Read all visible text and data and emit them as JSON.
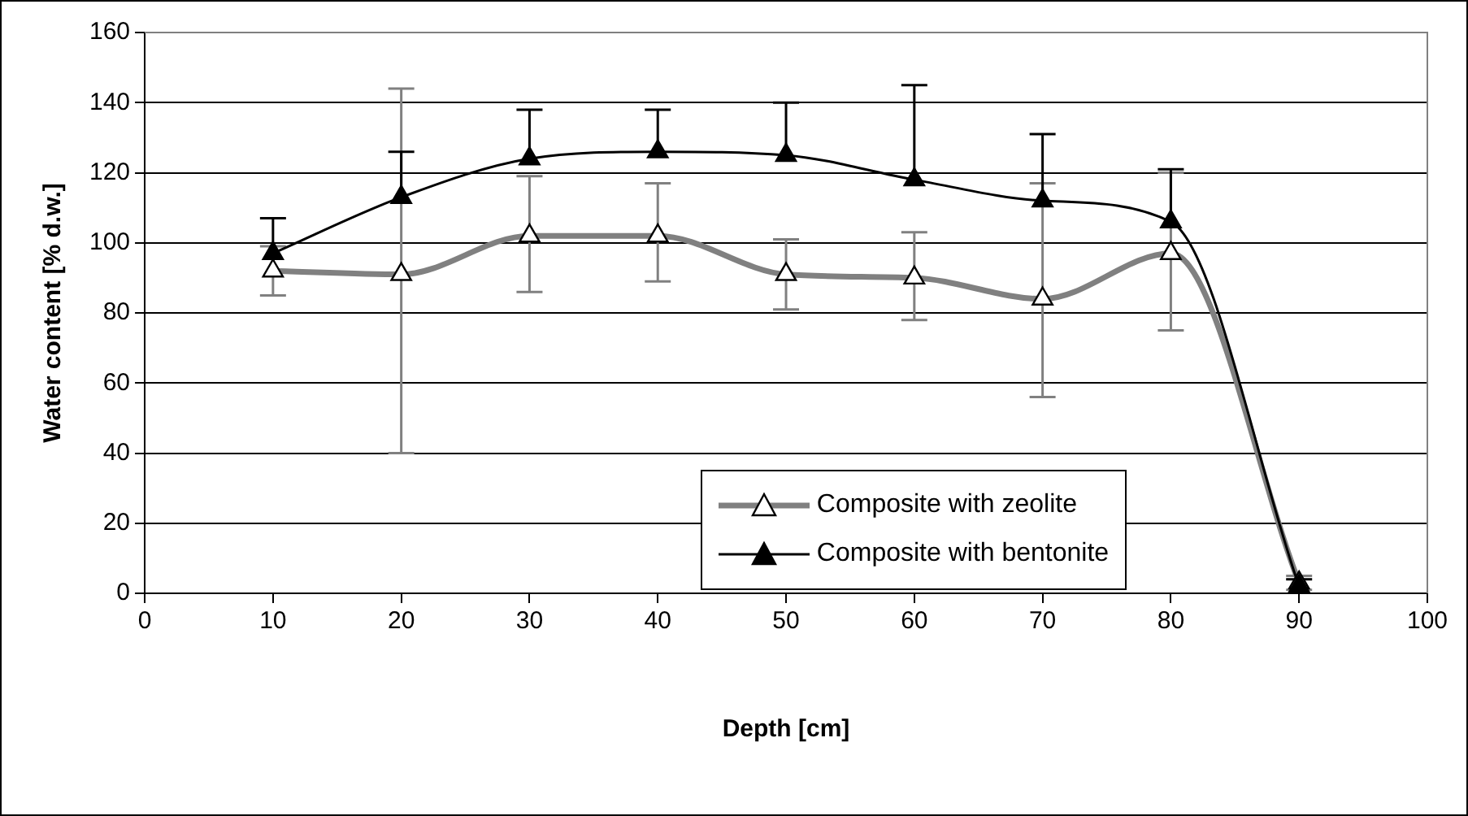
{
  "chart_data": {
    "type": "line",
    "xlabel": "Depth [cm]",
    "ylabel": "Water content [% d.w.]",
    "x": [
      10,
      20,
      30,
      40,
      50,
      60,
      70,
      80,
      90
    ],
    "series": [
      {
        "name": "Composite with zeolite",
        "color": "#808080",
        "values": [
          92,
          91,
          102,
          102,
          91,
          90,
          84,
          97,
          3
        ],
        "errors": [
          [
            85,
            99
          ],
          [
            40,
            144
          ],
          [
            86,
            119
          ],
          [
            89,
            117
          ],
          [
            81,
            101
          ],
          [
            78,
            103
          ],
          [
            56,
            117
          ],
          [
            75,
            120
          ],
          [
            1,
            5
          ]
        ]
      },
      {
        "name": "Composite with bentonite",
        "color": "#000000",
        "values": [
          97,
          113,
          124,
          126,
          125,
          118,
          112,
          106,
          2
        ],
        "errors": [
          [
            97,
            107
          ],
          [
            113,
            126
          ],
          [
            124,
            138
          ],
          [
            126,
            138
          ],
          [
            125,
            140
          ],
          [
            118,
            145
          ],
          [
            112,
            131
          ],
          [
            106,
            121
          ],
          [
            2,
            4
          ]
        ]
      }
    ],
    "xlim": [
      0,
      100
    ],
    "xticks": [
      0,
      10,
      20,
      30,
      40,
      50,
      60,
      70,
      80,
      90,
      100
    ],
    "ylim": [
      0,
      160
    ],
    "yticks": [
      0,
      20,
      40,
      60,
      80,
      100,
      120,
      140,
      160
    ],
    "grid": "y",
    "legend": "bottom right",
    "marker": "triangle",
    "line_style": "solid"
  }
}
